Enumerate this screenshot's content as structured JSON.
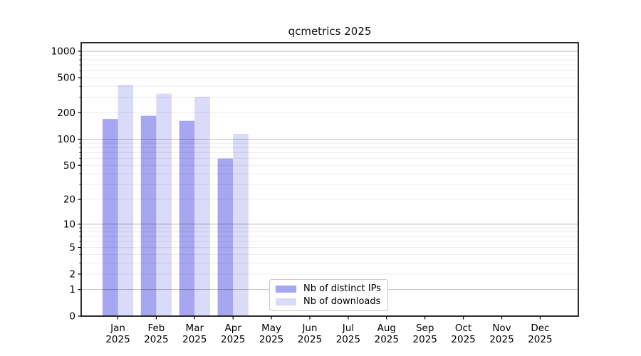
{
  "chart_data": {
    "type": "bar",
    "title": "qcmetrics 2025",
    "xlabel": "",
    "ylabel": "",
    "yscale": "log1p",
    "ylim": [
      0,
      1100
    ],
    "grid": true,
    "legend_position": "bottom-center",
    "categories": [
      "Jan",
      "Feb",
      "Mar",
      "Apr",
      "May",
      "Jun",
      "Jul",
      "Aug",
      "Sep",
      "Oct",
      "Nov",
      "Dec"
    ],
    "category_year": "2025",
    "yticks": [
      0,
      1,
      2,
      5,
      10,
      20,
      50,
      100,
      200,
      500,
      1000
    ],
    "series": [
      {
        "name": "Nb of distinct IPs",
        "color": "#a6a6f1",
        "values": [
          170,
          185,
          162,
          60,
          null,
          null,
          null,
          null,
          null,
          null,
          null,
          null
        ]
      },
      {
        "name": "Nb of downloads",
        "color": "#dadaf9",
        "values": [
          415,
          330,
          305,
          115,
          null,
          null,
          null,
          null,
          null,
          null,
          null,
          null
        ]
      }
    ]
  }
}
